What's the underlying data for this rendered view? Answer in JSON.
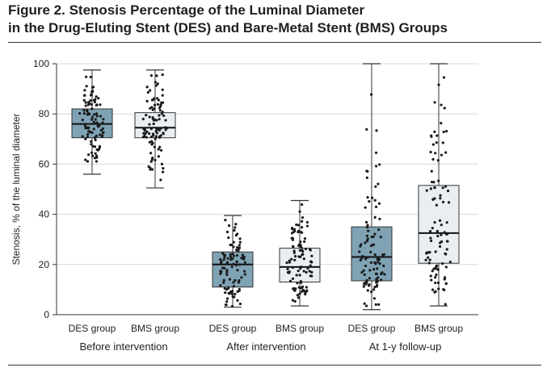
{
  "figure": {
    "title_line1": "Figure 2. Stenosis Percentage of the Luminal Diameter",
    "title_line2": "in the Drug-Eluting Stent (DES) and Bare-Metal Stent (BMS) Groups"
  },
  "colors": {
    "des_fill": "#7fa3b4",
    "bms_fill": "#e8eef1",
    "box_stroke": "#333333",
    "grid": "#d9d9d9",
    "point": "#1a1a1a"
  },
  "chart_data": {
    "type": "box",
    "title": "Stenosis Percentage of the Luminal Diameter in the Drug-Eluting Stent (DES) and Bare-Metal Stent (BMS) Groups",
    "ylabel": "Stenosis, % of the luminal diameter",
    "xlabel": "",
    "ylim": [
      0,
      100
    ],
    "yticks": [
      0,
      20,
      40,
      60,
      80,
      100
    ],
    "grid": true,
    "groups": [
      {
        "label": "Before intervention",
        "boxes": [
          {
            "name": "DES group",
            "min": 56,
            "q1": 70.5,
            "median": 76,
            "q3": 82,
            "max": 97.5
          },
          {
            "name": "BMS group",
            "min": 50.5,
            "q1": 70.5,
            "median": 74.5,
            "q3": 80.5,
            "max": 97.5
          }
        ]
      },
      {
        "label": "After intervention",
        "boxes": [
          {
            "name": "DES group",
            "min": 3,
            "q1": 11,
            "median": 20,
            "q3": 25,
            "max": 39.5
          },
          {
            "name": "BMS group",
            "min": 3.5,
            "q1": 13,
            "median": 19,
            "q3": 26.5,
            "max": 45.5
          }
        ]
      },
      {
        "label": "At 1-y follow-up",
        "boxes": [
          {
            "name": "DES group",
            "min": 2,
            "q1": 13.5,
            "median": 23,
            "q3": 35,
            "max": 100
          },
          {
            "name": "BMS group",
            "min": 3.5,
            "q1": 20.5,
            "median": 32.5,
            "q3": 51.5,
            "max": 100
          }
        ]
      }
    ],
    "approx_points_per_box": 100
  }
}
